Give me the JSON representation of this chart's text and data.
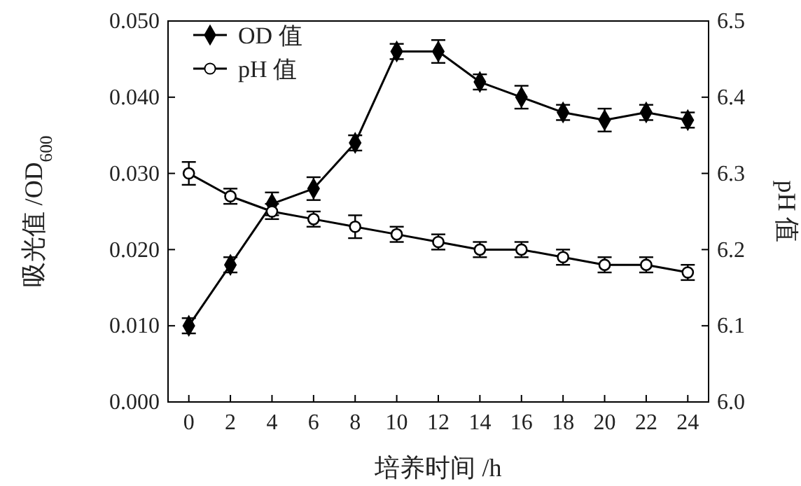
{
  "chart_data": {
    "type": "line",
    "xlabel": "培养时间 /h",
    "ylabel": "吸光值 /OD$_{600}$",
    "y2label": "pH 值",
    "x": [
      0,
      2,
      4,
      6,
      8,
      10,
      12,
      14,
      16,
      18,
      20,
      22,
      24
    ],
    "xlim": [
      -1,
      25
    ],
    "xticks": [
      0,
      2,
      4,
      6,
      8,
      10,
      12,
      14,
      16,
      18,
      20,
      22,
      24
    ],
    "ylim": [
      0,
      0.05
    ],
    "yticks": [
      {
        "value": 0,
        "label": "0.000"
      },
      {
        "value": 0.01,
        "label": "0.010"
      },
      {
        "value": 0.02,
        "label": "0.020"
      },
      {
        "value": 0.03,
        "label": "0.030"
      },
      {
        "value": 0.04,
        "label": "0.040"
      },
      {
        "value": 0.05,
        "label": "0.050"
      }
    ],
    "y2lim": [
      6.0,
      6.5
    ],
    "y2ticks": [
      {
        "value": 6.0,
        "label": "6.0"
      },
      6.1,
      6.2,
      6.3,
      6.4,
      6.5
    ],
    "legend": "top left",
    "line_style": "solid",
    "grid": false,
    "series": [
      {
        "name": "OD 值",
        "color": "#000000",
        "marker": "diamond",
        "values": [
          0.01,
          0.018,
          0.026,
          0.028,
          0.034,
          0.046,
          0.046,
          0.042,
          0.04,
          0.038,
          0.037,
          0.038,
          0.037
        ],
        "errors": [
          0.001,
          0.001,
          0.0015,
          0.0015,
          0.001,
          0.001,
          0.0015,
          0.001,
          0.0015,
          0.001,
          0.0015,
          0.001,
          0.001
        ]
      },
      {
        "name": "pH 值",
        "color": "#000000",
        "marker": "circle",
        "axis": "y2",
        "values": [
          6.3,
          6.27,
          6.25,
          6.24,
          6.23,
          6.22,
          6.21,
          6.2,
          6.2,
          6.19,
          6.18,
          6.18,
          6.17
        ],
        "errors": [
          0.015,
          0.01,
          0.01,
          0.01,
          0.015,
          0.01,
          0.01,
          0.01,
          0.01,
          0.01,
          0.01,
          0.01,
          0.01
        ]
      }
    ]
  }
}
